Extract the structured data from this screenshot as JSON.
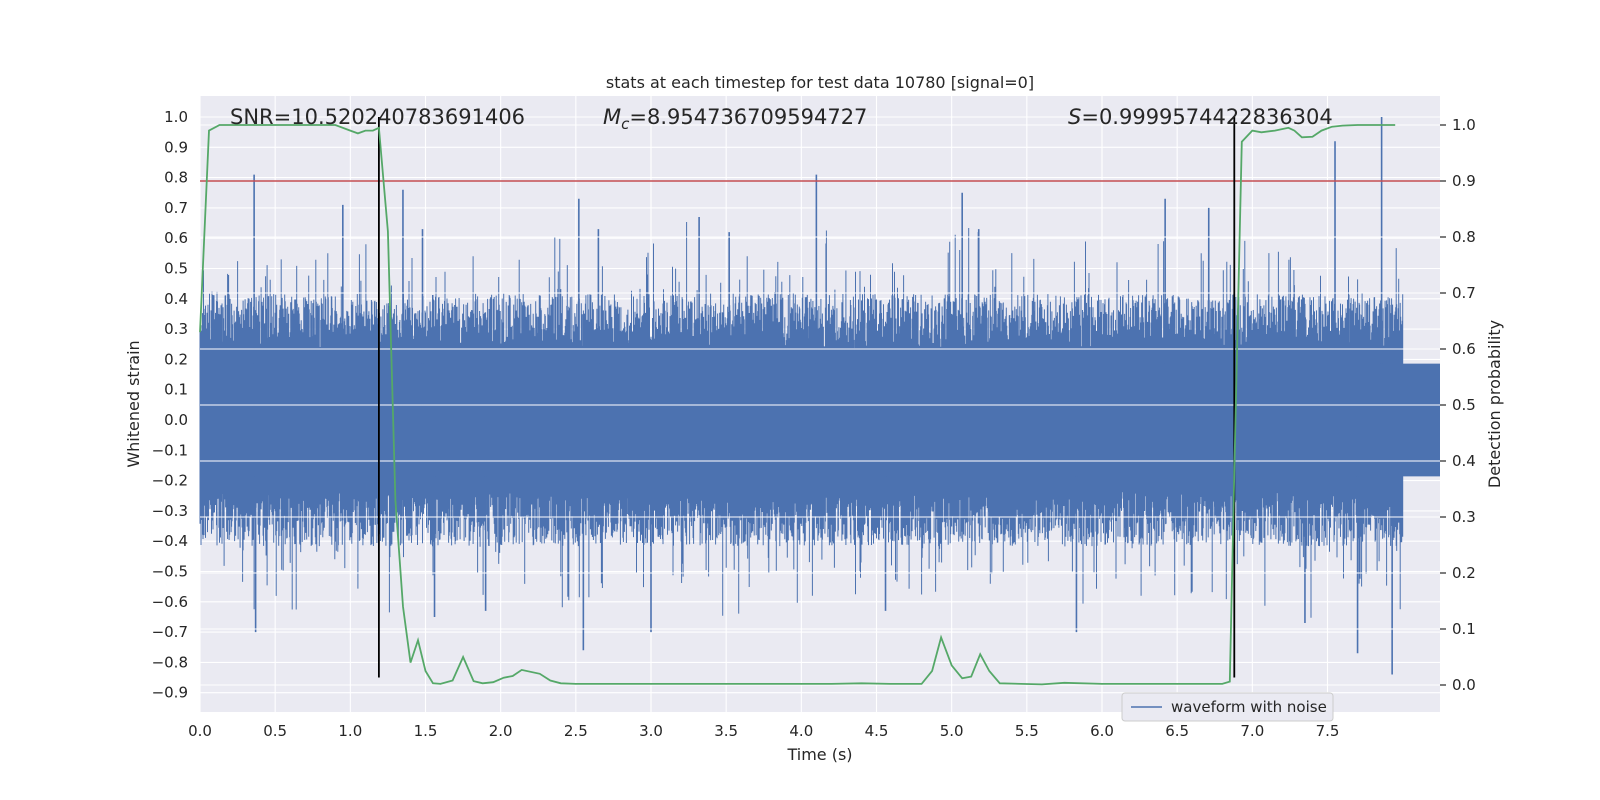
{
  "chart_data": {
    "type": "line",
    "title": "stats at each timestep for test data 10780 [signal=0]",
    "xlabel": "Time (s)",
    "ylabel": "Whitened strain",
    "y2label": "Detection probability",
    "xlim": [
      0.0,
      8.0
    ],
    "ylim": [
      -0.95,
      1.09
    ],
    "y2lim": [
      -0.045,
      1.045
    ],
    "xticks": [
      0.0,
      0.5,
      1.0,
      1.5,
      2.0,
      2.5,
      3.0,
      3.5,
      4.0,
      4.5,
      5.0,
      5.5,
      6.0,
      6.5,
      7.0,
      7.5
    ],
    "xtick_labels": [
      "0.0",
      "0.5",
      "1.0",
      "1.5",
      "2.0",
      "2.5",
      "3.0",
      "3.5",
      "4.0",
      "4.5",
      "5.0",
      "5.5",
      "6.0",
      "6.5",
      "7.0",
      "7.5"
    ],
    "yticks": [
      -0.9,
      -0.8,
      -0.7,
      -0.6,
      -0.5,
      -0.4,
      -0.3,
      -0.2,
      -0.1,
      0.0,
      0.1,
      0.2,
      0.3,
      0.4,
      0.5,
      0.6,
      0.7,
      0.8,
      0.9,
      1.0
    ],
    "ytick_labels": [
      "−0.9",
      "−0.8",
      "−0.7",
      "−0.6",
      "−0.5",
      "−0.4",
      "−0.3",
      "−0.2",
      "−0.1",
      "0.0",
      "0.1",
      "0.2",
      "0.3",
      "0.4",
      "0.5",
      "0.6",
      "0.7",
      "0.8",
      "0.9",
      "1.0"
    ],
    "y2ticks": [
      0.0,
      0.1,
      0.2,
      0.3,
      0.4,
      0.5,
      0.6,
      0.7,
      0.8,
      0.9,
      1.0
    ],
    "y2tick_labels": [
      "0.0",
      "0.1",
      "0.2",
      "0.3",
      "0.4",
      "0.5",
      "0.6",
      "0.7",
      "0.8",
      "0.9",
      "1.0"
    ],
    "grid": true,
    "legend": {
      "placement": "bottom-right",
      "entries": [
        "waveform with noise"
      ]
    },
    "annotations": {
      "snr": "SNR=10.520240783691406",
      "mc_symbol": "M",
      "mc_sub": "c",
      "mc_value": "=8.954736709594727",
      "s_symbol": "S",
      "s_value": "=0.9999574422836304"
    },
    "series": [
      {
        "name": "waveform with noise",
        "axis": "left",
        "style": "noise-band",
        "typical_amplitude": 0.3,
        "max": 1.0,
        "min": -0.84,
        "spikes": [
          {
            "x": 0.36,
            "y": 0.81
          },
          {
            "x": 0.37,
            "y": -0.7
          },
          {
            "x": 0.95,
            "y": 0.71
          },
          {
            "x": 1.35,
            "y": 0.76
          },
          {
            "x": 1.48,
            "y": 0.63
          },
          {
            "x": 1.56,
            "y": -0.65
          },
          {
            "x": 1.9,
            "y": -0.63
          },
          {
            "x": 2.52,
            "y": 0.73
          },
          {
            "x": 2.55,
            "y": -0.76
          },
          {
            "x": 2.65,
            "y": 0.63
          },
          {
            "x": 3.0,
            "y": -0.7
          },
          {
            "x": 3.32,
            "y": 0.67
          },
          {
            "x": 3.52,
            "y": 0.62
          },
          {
            "x": 4.1,
            "y": 0.81
          },
          {
            "x": 4.56,
            "y": -0.63
          },
          {
            "x": 5.07,
            "y": 0.75
          },
          {
            "x": 5.18,
            "y": 0.63
          },
          {
            "x": 5.83,
            "y": -0.7
          },
          {
            "x": 6.42,
            "y": 0.73
          },
          {
            "x": 6.71,
            "y": 0.7
          },
          {
            "x": 7.35,
            "y": -0.67
          },
          {
            "x": 7.55,
            "y": 0.92
          },
          {
            "x": 7.7,
            "y": -0.77
          },
          {
            "x": 7.86,
            "y": 1.0
          },
          {
            "x": 7.93,
            "y": -0.84
          }
        ]
      },
      {
        "name": "detection probability",
        "axis": "right",
        "color": "#55a868",
        "x": [
          0.0,
          0.06,
          0.13,
          0.3,
          0.5,
          0.7,
          0.9,
          1.0,
          1.05,
          1.1,
          1.15,
          1.19,
          1.25,
          1.3,
          1.35,
          1.4,
          1.45,
          1.5,
          1.55,
          1.6,
          1.68,
          1.75,
          1.82,
          1.88,
          1.95,
          2.02,
          2.08,
          2.14,
          2.26,
          2.33,
          2.4,
          2.5,
          2.8,
          3.2,
          3.4,
          3.8,
          4.2,
          4.4,
          4.6,
          4.8,
          4.87,
          4.93,
          5.0,
          5.07,
          5.13,
          5.19,
          5.25,
          5.32,
          5.6,
          5.75,
          6.0,
          6.5,
          6.8,
          6.85,
          6.88,
          6.93,
          7.0,
          7.06,
          7.15,
          7.24,
          7.28,
          7.33,
          7.4,
          7.46,
          7.53,
          7.6,
          7.7,
          7.8,
          7.95
        ],
        "y": [
          0.63,
          0.99,
          1.0,
          1.0,
          1.0,
          1.0,
          1.0,
          0.99,
          0.985,
          0.99,
          0.99,
          0.995,
          0.81,
          0.33,
          0.14,
          0.04,
          0.08,
          0.025,
          0.003,
          0.002,
          0.008,
          0.05,
          0.007,
          0.003,
          0.005,
          0.013,
          0.016,
          0.027,
          0.02,
          0.008,
          0.003,
          0.002,
          0.002,
          0.002,
          0.002,
          0.002,
          0.002,
          0.003,
          0.002,
          0.002,
          0.025,
          0.085,
          0.035,
          0.012,
          0.015,
          0.055,
          0.025,
          0.003,
          0.001,
          0.004,
          0.002,
          0.002,
          0.002,
          0.006,
          0.38,
          0.97,
          0.99,
          0.987,
          0.99,
          0.995,
          0.99,
          0.978,
          0.979,
          0.99,
          0.997,
          0.999,
          1.0,
          1.0,
          1.0
        ]
      }
    ],
    "hlines": [
      {
        "axis": "right",
        "y": 0.9,
        "color": "#c44e52"
      }
    ],
    "vlines": [
      {
        "x": 1.19,
        "ymin": -0.85,
        "ymax": 1.0,
        "color": "#000000"
      },
      {
        "x": 6.88,
        "ymin": -0.85,
        "ymax": 1.0,
        "color": "#000000"
      }
    ]
  }
}
